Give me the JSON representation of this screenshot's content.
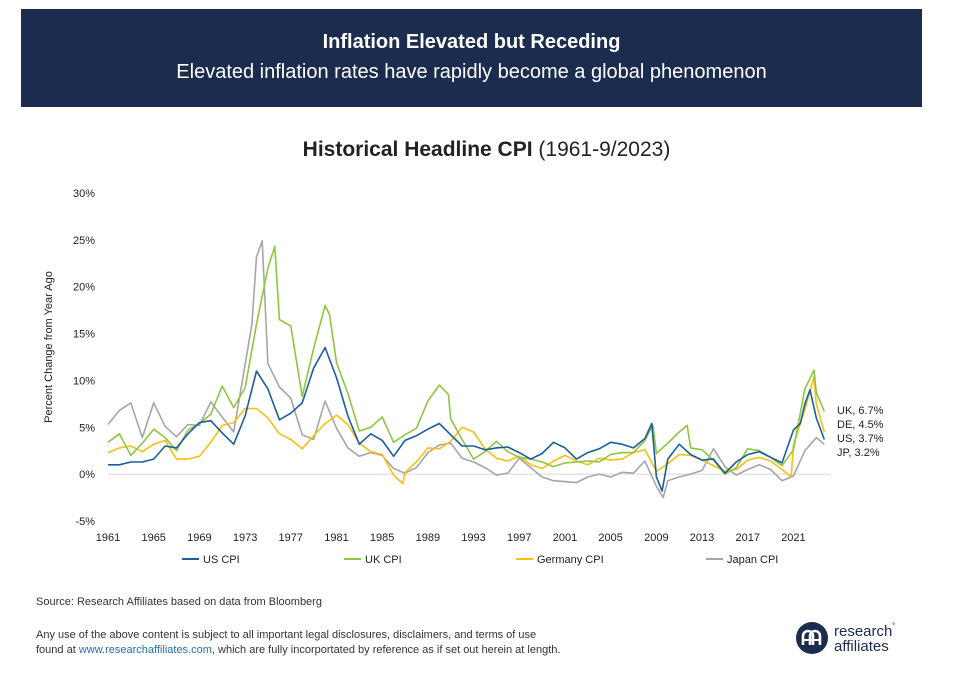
{
  "header": {
    "title": "Inflation Elevated but Receding",
    "subtitle": "Elevated inflation rates have rapidly become a global phenomenon"
  },
  "chart_title": {
    "bold": "Historical Headline CPI",
    "rest": " (1961-9/2023)"
  },
  "colors": {
    "us": "#1b5e9a",
    "uk": "#8dc63f",
    "de": "#f5c014",
    "jp": "#a6a6a6",
    "banner": "#1b2c4e"
  },
  "chart_data": {
    "type": "line",
    "title": "Historical Headline CPI (1961-9/2023)",
    "ylabel": "Percent Change from Year Ago",
    "xlim": [
      1961,
      2024.2
    ],
    "ylim": [
      -5,
      30
    ],
    "y_ticks": [
      -5,
      0,
      5,
      10,
      15,
      20,
      25,
      30
    ],
    "y_tick_labels": [
      "-5%",
      "0%",
      "5%",
      "10%",
      "15%",
      "20%",
      "25%",
      "30%"
    ],
    "x_ticks": [
      1961,
      1965,
      1969,
      1973,
      1977,
      1981,
      1985,
      1989,
      1993,
      1997,
      2001,
      2005,
      2009,
      2013,
      2017,
      2021
    ],
    "x_tick_labels": [
      "1961",
      "1965",
      "1969",
      "1973",
      "1977",
      "1981",
      "1985",
      "1989",
      "1993",
      "1997",
      "2001",
      "2005",
      "2009",
      "2013",
      "2017",
      "2021"
    ],
    "legend_position": "bottom",
    "series": [
      {
        "key": "us",
        "name": "US CPI",
        "end_label": "US, 3.7%",
        "x": [
          1961,
          1962,
          1963,
          1964,
          1965,
          1966,
          1967,
          1968,
          1969,
          1970,
          1971,
          1972,
          1973,
          1974,
          1975,
          1976,
          1977,
          1978,
          1979,
          1980,
          1981,
          1982,
          1983,
          1984,
          1985,
          1986,
          1987,
          1988,
          1989,
          1990,
          1991,
          1992,
          1993,
          1994,
          1995,
          1996,
          1997,
          1998,
          1999,
          2000,
          2001,
          2002,
          2003,
          2004,
          2005,
          2006,
          2007,
          2008,
          2008.6,
          2009,
          2009.5,
          2010,
          2011,
          2012,
          2013,
          2014,
          2015,
          2016,
          2017,
          2018,
          2019,
          2020,
          2021,
          2021.6,
          2022,
          2022.45,
          2023,
          2023.7
        ],
        "y": [
          1.0,
          1.0,
          1.3,
          1.3,
          1.6,
          3.0,
          2.8,
          4.3,
          5.5,
          5.7,
          4.4,
          3.2,
          6.2,
          11.0,
          9.1,
          5.8,
          6.5,
          7.6,
          11.3,
          13.5,
          10.3,
          6.2,
          3.2,
          4.3,
          3.6,
          1.9,
          3.6,
          4.1,
          4.8,
          5.4,
          4.2,
          3.0,
          3.0,
          2.6,
          2.8,
          2.9,
          2.3,
          1.6,
          2.2,
          3.4,
          2.8,
          1.6,
          2.3,
          2.7,
          3.4,
          3.2,
          2.8,
          3.8,
          5.4,
          -0.3,
          -1.8,
          1.6,
          3.2,
          2.1,
          1.5,
          1.6,
          0.1,
          1.3,
          2.1,
          2.4,
          1.8,
          1.2,
          4.7,
          5.4,
          7.5,
          9.0,
          6.0,
          3.7
        ]
      },
      {
        "key": "uk",
        "name": "UK CPI",
        "end_label": "UK, 6.7%",
        "x": [
          1961,
          1962,
          1963,
          1964,
          1965,
          1966,
          1967,
          1968,
          1969,
          1970,
          1971,
          1972,
          1973,
          1974,
          1975,
          1975.6,
          1976,
          1977,
          1978,
          1979,
          1980,
          1980.4,
          1981,
          1982,
          1983,
          1984,
          1985,
          1986,
          1987,
          1988,
          1989,
          1990,
          1990.8,
          1991,
          1992,
          1993,
          1994,
          1995,
          1996,
          1997,
          1998,
          1999,
          2000,
          2001,
          2002,
          2003,
          2004,
          2005,
          2006,
          2007,
          2008,
          2008.7,
          2009,
          2010,
          2011,
          2011.7,
          2012,
          2013,
          2014,
          2015,
          2016,
          2017,
          2018,
          2019,
          2020,
          2021,
          2022,
          2022.8,
          2023,
          2023.7
        ],
        "y": [
          3.4,
          4.3,
          2.0,
          3.3,
          4.8,
          3.9,
          2.5,
          4.7,
          5.4,
          6.4,
          9.4,
          7.1,
          9.2,
          16.0,
          22.0,
          24.3,
          16.5,
          15.8,
          8.3,
          13.4,
          18.0,
          17.0,
          11.9,
          8.6,
          4.6,
          5.0,
          6.1,
          3.4,
          4.2,
          4.9,
          7.8,
          9.5,
          8.5,
          5.9,
          3.7,
          1.6,
          2.4,
          3.5,
          2.4,
          1.8,
          1.6,
          1.3,
          0.8,
          1.2,
          1.3,
          1.4,
          1.3,
          2.1,
          2.3,
          2.3,
          3.6,
          5.2,
          2.2,
          3.3,
          4.5,
          5.2,
          2.8,
          2.6,
          1.5,
          0.0,
          0.7,
          2.7,
          2.5,
          1.8,
          0.9,
          2.6,
          9.1,
          11.1,
          8.7,
          6.7
        ]
      },
      {
        "key": "de",
        "name": "Germany CPI",
        "end_label": "DE, 4.5%",
        "x": [
          1961,
          1962,
          1963,
          1964,
          1965,
          1966,
          1967,
          1968,
          1969,
          1970,
          1971,
          1972,
          1973,
          1974,
          1975,
          1976,
          1977,
          1978,
          1979,
          1980,
          1981,
          1982,
          1983,
          1984,
          1985,
          1986,
          1986.8,
          1987,
          1988,
          1989,
          1990,
          1991,
          1992,
          1993,
          1994,
          1995,
          1996,
          1997,
          1998,
          1999,
          2000,
          2001,
          2002,
          2003,
          2004,
          2005,
          2006,
          2007,
          2008,
          2009,
          2010,
          2011,
          2012,
          2013,
          2014,
          2015,
          2016,
          2017,
          2018,
          2019,
          2020,
          2020.8,
          2021,
          2022,
          2022.8,
          2023,
          2023.7
        ],
        "y": [
          2.3,
          2.8,
          3.0,
          2.4,
          3.2,
          3.6,
          1.6,
          1.6,
          1.9,
          3.4,
          5.2,
          5.5,
          7.0,
          7.0,
          6.0,
          4.3,
          3.7,
          2.7,
          4.1,
          5.4,
          6.3,
          5.3,
          3.3,
          2.4,
          2.1,
          -0.1,
          -1.0,
          0.2,
          1.3,
          2.8,
          2.7,
          3.5,
          5.0,
          4.5,
          2.7,
          1.7,
          1.4,
          1.9,
          1.0,
          0.6,
          1.4,
          2.0,
          1.4,
          1.0,
          1.7,
          1.5,
          1.6,
          2.3,
          2.6,
          0.3,
          1.1,
          2.1,
          2.0,
          1.5,
          0.9,
          0.3,
          0.5,
          1.5,
          1.8,
          1.4,
          0.5,
          -0.3,
          3.1,
          6.9,
          10.4,
          7.5,
          4.5
        ]
      },
      {
        "key": "jp",
        "name": "Japan CPI",
        "end_label": "JP, 3.2%",
        "x": [
          1961,
          1962,
          1963,
          1964,
          1965,
          1966,
          1967,
          1968,
          1969,
          1970,
          1971,
          1972,
          1973,
          1973.6,
          1974,
          1974.5,
          1975,
          1976,
          1977,
          1978,
          1979,
          1980,
          1981,
          1982,
          1983,
          1984,
          1985,
          1986,
          1987,
          1988,
          1989,
          1990,
          1991,
          1992,
          1993,
          1994,
          1995,
          1996,
          1997,
          1998,
          1999,
          2000,
          2001,
          2002,
          2003,
          2004,
          2005,
          2006,
          2007,
          2008,
          2009,
          2009.6,
          2010,
          2011,
          2012,
          2013,
          2014,
          2015,
          2016,
          2017,
          2018,
          2019,
          2020,
          2021,
          2022,
          2023,
          2023.7
        ],
        "y": [
          5.3,
          6.8,
          7.6,
          3.9,
          7.6,
          5.1,
          4.0,
          5.3,
          5.2,
          7.7,
          6.1,
          4.5,
          11.7,
          16.0,
          23.2,
          24.9,
          11.8,
          9.3,
          8.1,
          4.2,
          3.7,
          7.8,
          4.9,
          2.8,
          1.9,
          2.3,
          2.0,
          0.6,
          0.1,
          0.7,
          2.3,
          3.1,
          3.3,
          1.7,
          1.3,
          0.7,
          -0.1,
          0.1,
          1.7,
          0.7,
          -0.3,
          -0.7,
          -0.8,
          -0.9,
          -0.3,
          0.0,
          -0.3,
          0.2,
          0.1,
          1.4,
          -1.3,
          -2.5,
          -0.7,
          -0.3,
          0.0,
          0.4,
          2.7,
          0.8,
          -0.1,
          0.5,
          1.0,
          0.5,
          -0.7,
          -0.2,
          2.5,
          3.9,
          3.2
        ]
      }
    ]
  },
  "source_text": "Source: Research Affiliates based on data from Bloomberg",
  "disclaimer": {
    "line1": "Any use of the above content is subject to all important legal disclosures, disclaimers, and terms of use",
    "line2_pre": "found at ",
    "link": "www.researchaffiliates.com",
    "line2_post": ", which are fully incorportated by reference as if set out herein at length."
  },
  "logo": {
    "line1": "research",
    "tm": "˚",
    "line2": "affiliates"
  }
}
